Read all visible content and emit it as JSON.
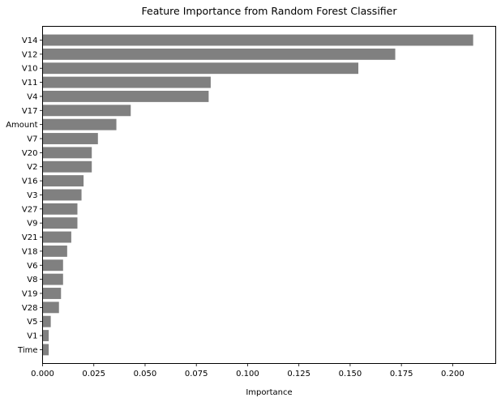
{
  "chart_data": {
    "type": "bar",
    "orientation": "horizontal",
    "title": "Feature Importance from Random Forest Classifier",
    "xlabel": "Importance",
    "ylabel": "",
    "xlim": [
      0.0,
      0.221
    ],
    "xticks": [
      0.0,
      0.025,
      0.05,
      0.075,
      0.1,
      0.125,
      0.15,
      0.175,
      0.2
    ],
    "xtick_labels": [
      "0.000",
      "0.025",
      "0.050",
      "0.075",
      "0.100",
      "0.125",
      "0.150",
      "0.175",
      "0.200"
    ],
    "grid": false,
    "bar_color": "#808080",
    "categories": [
      "V14",
      "V12",
      "V10",
      "V11",
      "V4",
      "V17",
      "Amount",
      "V7",
      "V20",
      "V2",
      "V16",
      "V3",
      "V27",
      "V9",
      "V21",
      "V18",
      "V6",
      "V8",
      "V19",
      "V28",
      "V5",
      "V1",
      "Time"
    ],
    "values": [
      0.21,
      0.172,
      0.154,
      0.082,
      0.081,
      0.043,
      0.036,
      0.027,
      0.024,
      0.024,
      0.02,
      0.019,
      0.017,
      0.017,
      0.014,
      0.012,
      0.01,
      0.01,
      0.009,
      0.008,
      0.004,
      0.003,
      0.003
    ]
  }
}
